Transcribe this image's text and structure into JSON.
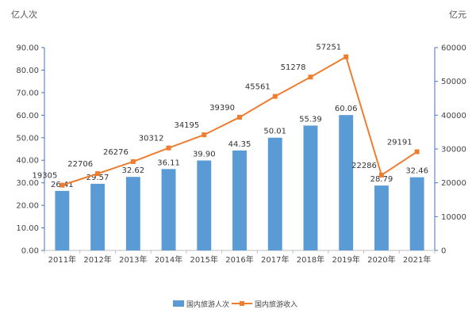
{
  "chart_data": {
    "type": "bar",
    "categories": [
      "2011年",
      "2012年",
      "2013年",
      "2014年",
      "2015年",
      "2016年",
      "2017年",
      "2018年",
      "2019年",
      "2020年",
      "2021年"
    ],
    "series": [
      {
        "name": "国内旅游人次",
        "type": "bar",
        "axis": "left",
        "values": [
          26.41,
          29.57,
          32.62,
          36.11,
          39.9,
          44.35,
          50.01,
          55.39,
          60.06,
          28.79,
          32.46
        ],
        "labels": [
          "26.41",
          "29.57",
          "32.62",
          "36.11",
          "39.90",
          "44.35",
          "50.01",
          "55.39",
          "60.06",
          "28.79",
          "32.46"
        ]
      },
      {
        "name": "国内旅游收入",
        "type": "line",
        "axis": "right",
        "values": [
          19305,
          22706,
          26276,
          30312,
          34195,
          39390,
          45561,
          51278,
          57251,
          22286,
          29191
        ],
        "labels": [
          "19305",
          "22706",
          "26276",
          "30312",
          "34195",
          "39390",
          "45561",
          "51278",
          "57251",
          "22286",
          "29191"
        ]
      }
    ],
    "y_left": {
      "label": "亿人次",
      "min": 0,
      "max": 90,
      "step": 10,
      "ticks": [
        "0.00",
        "10.00",
        "20.00",
        "30.00",
        "40.00",
        "50.00",
        "60.00",
        "70.00",
        "80.00",
        "90.00"
      ]
    },
    "y_right": {
      "label": "亿元",
      "min": 0,
      "max": 60000,
      "step": 10000,
      "ticks": [
        "0",
        "10000",
        "20000",
        "30000",
        "40000",
        "50000",
        "60000"
      ]
    },
    "grid": false,
    "legend_position": "bottom",
    "colors": {
      "bar": "#5b9bd5",
      "line": "#ed7d31",
      "axis": "#4472c4"
    }
  }
}
